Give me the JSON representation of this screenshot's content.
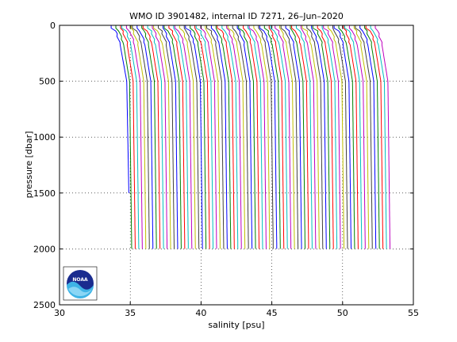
{
  "chart_data": {
    "type": "line",
    "title": "WMO ID 3901482, internal ID 7271, 26–Jun–2020",
    "xlabel": "salinity [psu]",
    "ylabel": "pressure [dbar]",
    "xlim": [
      30,
      55
    ],
    "ylim": [
      2500,
      0
    ],
    "y_reversed": true,
    "xticks": [
      30,
      35,
      40,
      45,
      50,
      55
    ],
    "xtick_labels": [
      "30",
      "35",
      "40",
      "45",
      "50",
      "55"
    ],
    "yticks": [
      0,
      500,
      1000,
      1500,
      2000,
      2500
    ],
    "ytick_labels": [
      "0",
      "500",
      "1000",
      "1500",
      "2000",
      "2500"
    ],
    "grid": "dotted",
    "profile_count": 75,
    "first_profile": {
      "surface_salinity": 33.9,
      "deep_salinity": 34.9,
      "max_pressure": 1500
    },
    "last_profile": {
      "surface_salinity": 53.0,
      "deep_salinity": 53.9,
      "max_pressure": 2000
    },
    "profile_offset_psu": 0.25,
    "max_pressure_dbar": 2000,
    "colors": [
      "#0000ff",
      "#008000",
      "#ff0000",
      "#00bfbf",
      "#bf00bf",
      "#bfbf00",
      "#404040"
    ],
    "logo": {
      "name": "noaa-logo",
      "text": "NOAA"
    }
  }
}
